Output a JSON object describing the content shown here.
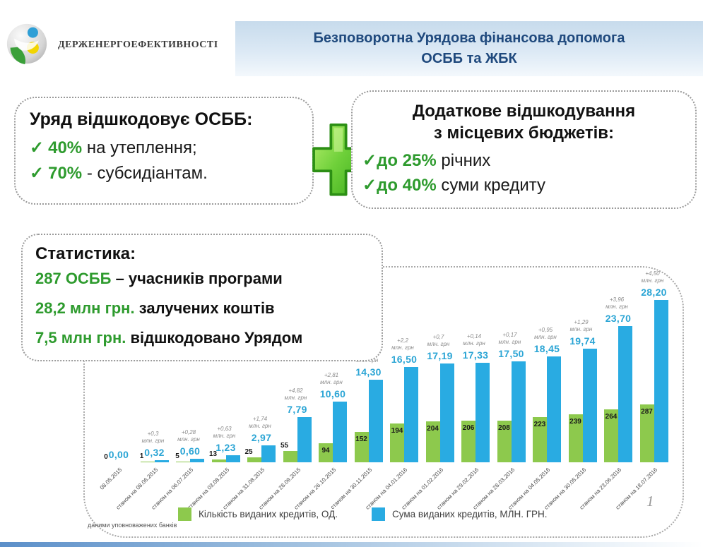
{
  "header": {
    "logo_text": "ДЕРЖЕНЕРГОЕФЕКТИВНОСТІ",
    "title_line1": "Безповоротна Урядова фінансова допомога",
    "title_line2": "ОСББ та ЖБК"
  },
  "gov_box": {
    "title": "Уряд відшкодовує ОСББ:",
    "items": [
      {
        "check": "✓",
        "highlight": "40%",
        "rest": " на утеплення;"
      },
      {
        "check": "✓",
        "highlight": "70%",
        "rest": " - субсидіантам."
      }
    ]
  },
  "local_box": {
    "title_line1": "Додаткове відшкодування",
    "title_line2": "з місцевих бюджетів:",
    "items": [
      {
        "check": "✓",
        "highlight": "до 25%",
        "rest": " річних"
      },
      {
        "check": "✓",
        "highlight": "до 40%",
        "rest": " суми кредиту"
      }
    ]
  },
  "stats_box": {
    "title": "Статистика:",
    "items": [
      {
        "highlight": "287 ОСББ",
        "rest": " – учасників програми"
      },
      {
        "highlight": "28,2 млн грн.",
        "rest": " залучених коштів"
      },
      {
        "highlight": "7,5 млн грн.",
        "rest": " відшкодовано Урядом"
      }
    ]
  },
  "chart_data": {
    "type": "bar",
    "title": "",
    "categories": [
      "08.05.2015",
      "станом на 08.06.2015",
      "станом на 06.07.2015",
      "станом на 03.08.2015",
      "станом на 31.08.2015",
      "станом на 28.09.2015",
      "станом на 26.10.2015",
      "станом на 30.11.2015",
      "станом на 04.01.2016",
      "станом на 01.02.2016",
      "станом на 29.02.2016",
      "станом на 28.03.2016",
      "станом на 04.05.2016",
      "станом на 30.05.2016",
      "станом на 23.06.2016",
      "станом на 18.07.2016"
    ],
    "series": [
      {
        "name": "Кількість виданих кредитів, ОД.",
        "color": "#8DC94D",
        "values": [
          0,
          1,
          5,
          13,
          25,
          55,
          94,
          152,
          194,
          204,
          206,
          208,
          223,
          239,
          264,
          287
        ],
        "labels": [
          "0",
          "1",
          "5",
          "13",
          "25",
          "55",
          "94",
          "152",
          "194",
          "204",
          "206",
          "208",
          "223",
          "239",
          "264",
          "287"
        ]
      },
      {
        "name": "Сума виданих кредитів, МЛН. ГРН.",
        "color": "#29ABE2",
        "values": [
          0,
          0.32,
          0.6,
          1.23,
          2.97,
          7.79,
          10.6,
          14.3,
          16.5,
          17.19,
          17.33,
          17.5,
          18.45,
          19.74,
          23.7,
          28.2
        ],
        "labels": [
          "0,00",
          "0,32",
          "0,60",
          "1,23",
          "2,97",
          "7,79",
          "10,60",
          "14,30",
          "16,50",
          "17,19",
          "17,33",
          "17,50",
          "18,45",
          "19,74",
          "23,70",
          "28,20"
        ]
      }
    ],
    "annotations": [
      null,
      "+0,3",
      "+0,28",
      "+0,63",
      "+1,74",
      "+4,82",
      "+2,81",
      "+3,7",
      "+2,2",
      "+0,7",
      "+0,14",
      "+0,17",
      "+0,95",
      "+1,29",
      "+3,96",
      "+4,50"
    ],
    "annotation_unit": "млн. грн",
    "legend_position": "bottom",
    "grid": false,
    "footnote": "даними уповноважених банків"
  },
  "page_number": "1"
}
